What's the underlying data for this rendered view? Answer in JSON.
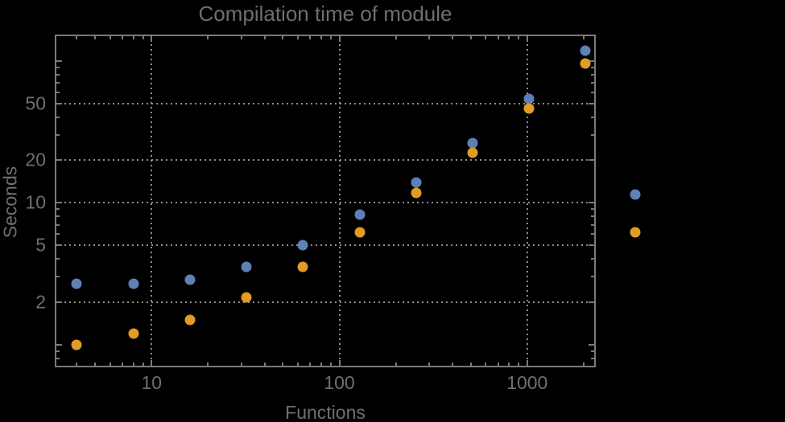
{
  "figure": {
    "background": "#000000",
    "frame_color": "#7a7a7a",
    "grid_color": "#8f8f8f",
    "text_color": "#6f6f6f"
  },
  "chart_data": {
    "type": "scatter",
    "title": "Compilation time of module",
    "xlabel": "Functions",
    "ylabel": "Seconds",
    "x_scale": "log",
    "y_scale": "log",
    "grid": "dotted",
    "x_axis": {
      "min": 3.05,
      "max": 2320,
      "labeled_ticks": [
        10,
        100,
        1000
      ],
      "tick_labels": [
        "10",
        "100",
        "1000"
      ],
      "minor_ticks": [
        4,
        5,
        6,
        7,
        8,
        9,
        20,
        30,
        40,
        50,
        60,
        70,
        80,
        90,
        200,
        300,
        400,
        500,
        600,
        700,
        800,
        900,
        2000
      ],
      "gridlines": [
        10,
        100,
        1000
      ]
    },
    "y_axis": {
      "min": 0.69,
      "max": 154,
      "labeled_ticks": [
        2,
        5,
        10,
        20,
        50
      ],
      "tick_labels": [
        "2",
        "5",
        "10",
        "20",
        "50"
      ],
      "major_unlabeled_ticks": [
        1,
        100
      ],
      "minor_ticks": [
        0.8,
        0.9,
        3,
        4,
        6,
        7,
        8,
        9,
        30,
        40,
        60,
        70,
        80,
        90
      ],
      "gridlines": [
        2,
        5,
        10,
        20,
        50
      ]
    },
    "x": [
      4,
      8,
      16,
      32,
      64,
      128,
      256,
      512,
      1024,
      2048
    ],
    "series": [
      {
        "name": "series-blue",
        "color": "#5e81b5",
        "values": [
          2.7,
          2.7,
          2.85,
          3.55,
          5.05,
          8.3,
          14.0,
          26.5,
          54,
          118
        ]
      },
      {
        "name": "series-orange",
        "color": "#e19c24",
        "values": [
          1.0,
          1.2,
          1.5,
          2.15,
          3.55,
          6.2,
          11.7,
          22.5,
          46,
          96
        ]
      }
    ],
    "legend": {
      "position": "right-center",
      "labels_visible": false,
      "entries": [
        "series-blue",
        "series-orange"
      ]
    }
  }
}
